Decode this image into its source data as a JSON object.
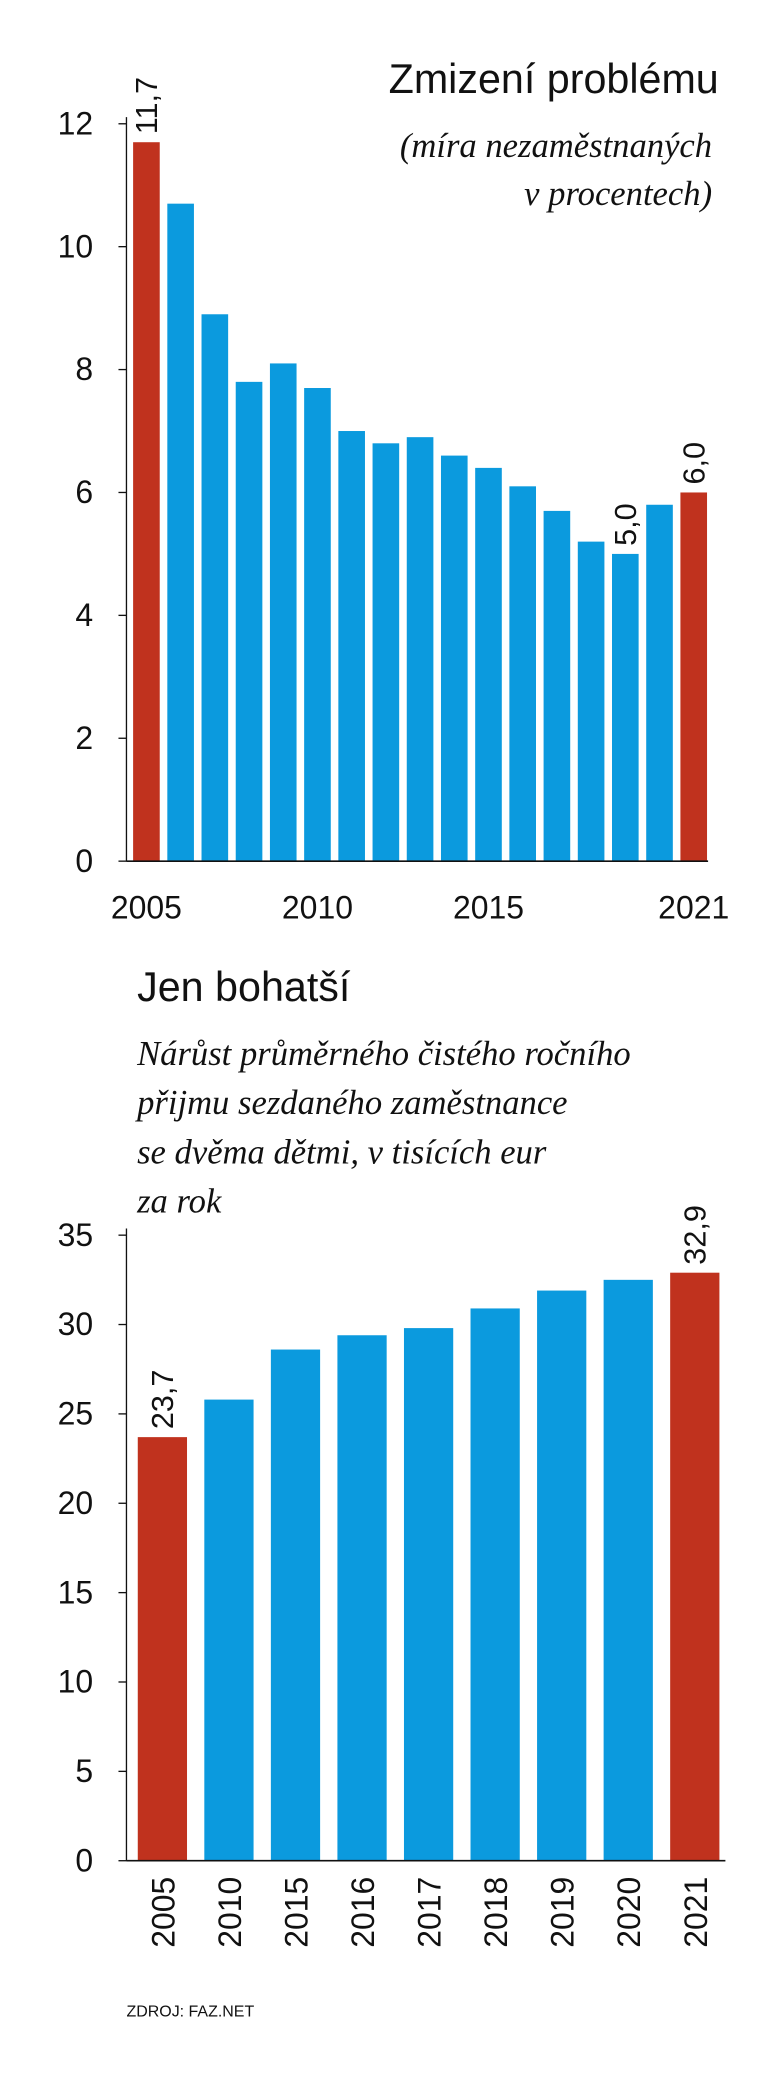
{
  "chart_data": [
    {
      "type": "bar",
      "title": "Zmizení problému",
      "subtitle": [
        "(míra nezaměstnaných",
        "v procentech)"
      ],
      "categories": [
        "2005",
        null,
        null,
        null,
        null,
        "2010",
        null,
        null,
        null,
        null,
        "2015",
        null,
        null,
        null,
        null,
        null,
        "2021"
      ],
      "values": [
        11.7,
        10.7,
        8.9,
        7.8,
        8.1,
        7.7,
        7.0,
        6.8,
        6.9,
        6.6,
        6.4,
        6.1,
        5.7,
        5.2,
        5.0,
        5.8,
        6.0
      ],
      "value_labels": [
        "11,7",
        null,
        null,
        null,
        null,
        null,
        null,
        null,
        null,
        null,
        null,
        null,
        null,
        null,
        "5,0",
        null,
        "6,0"
      ],
      "colors": [
        "#c0321e",
        "#0b9ade",
        "#0b9ade",
        "#0b9ade",
        "#0b9ade",
        "#0b9ade",
        "#0b9ade",
        "#0b9ade",
        "#0b9ade",
        "#0b9ade",
        "#0b9ade",
        "#0b9ade",
        "#0b9ade",
        "#0b9ade",
        "#0b9ade",
        "#0b9ade",
        "#c0321e"
      ],
      "ylim": [
        0,
        12
      ],
      "yticks": [
        0,
        2,
        4,
        6,
        8,
        10,
        12
      ]
    },
    {
      "type": "bar",
      "title": "Jen bohatší",
      "subtitle": [
        "Nárůst průměrného čistého ročního",
        "přijmu sezdaného zaměstnance",
        "se dvěma dětmi, v tisících eur",
        "za rok"
      ],
      "categories": [
        "2005",
        "2010",
        "2015",
        "2016",
        "2017",
        "2018",
        "2019",
        "2020",
        "2021"
      ],
      "values": [
        23.7,
        25.8,
        28.6,
        29.4,
        29.8,
        30.9,
        31.9,
        32.5,
        32.9
      ],
      "value_labels": [
        "23,7",
        null,
        null,
        null,
        null,
        null,
        null,
        null,
        "32,9"
      ],
      "colors": [
        "#c0321e",
        "#0b9ade",
        "#0b9ade",
        "#0b9ade",
        "#0b9ade",
        "#0b9ade",
        "#0b9ade",
        "#0b9ade",
        "#c0321e"
      ],
      "ylim": [
        0,
        35
      ],
      "yticks": [
        0,
        5,
        10,
        15,
        20,
        25,
        30,
        35
      ]
    }
  ],
  "source": "ZDROJ: FAZ.NET"
}
